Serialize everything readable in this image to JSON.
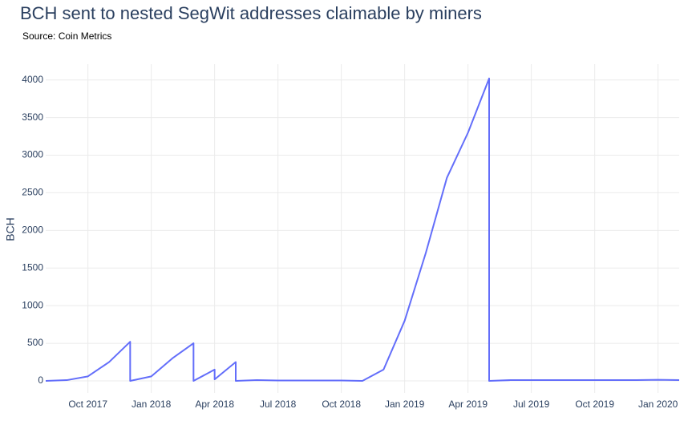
{
  "chart_data": {
    "type": "line",
    "title": "BCH sent to nested SegWit addresses claimable by miners",
    "subtitle": "Source: Coin Metrics",
    "y_label": "BCH",
    "x": [
      "2017-08",
      "2017-09",
      "2017-10",
      "2017-11",
      "2017-12",
      "2017-12",
      "2018-01",
      "2018-02",
      "2018-03",
      "2018-03",
      "2018-04",
      "2018-04",
      "2018-05",
      "2018-05",
      "2018-06",
      "2018-07",
      "2018-08",
      "2018-09",
      "2018-10",
      "2018-11",
      "2018-12",
      "2019-01",
      "2019-02",
      "2019-03",
      "2019-04",
      "2019-05",
      "2019-05",
      "2019-06",
      "2019-07",
      "2019-08",
      "2019-09",
      "2019-10",
      "2019-11",
      "2019-12",
      "2020-01",
      "2020-02"
    ],
    "series": [
      {
        "name": "BCH",
        "color": "#636efa",
        "values": [
          0,
          10,
          60,
          250,
          520,
          0,
          60,
          300,
          500,
          0,
          150,
          20,
          250,
          0,
          10,
          5,
          5,
          5,
          5,
          0,
          150,
          800,
          1700,
          2700,
          3300,
          4020,
          0,
          10,
          10,
          10,
          10,
          10,
          10,
          10,
          15,
          10
        ]
      }
    ],
    "xlim": [
      "2017-08",
      "2020-02"
    ],
    "xticks": [
      {
        "value": "2017-10",
        "label": "Oct 2017"
      },
      {
        "value": "2018-01",
        "label": "Jan 2018"
      },
      {
        "value": "2018-04",
        "label": "Apr 2018"
      },
      {
        "value": "2018-07",
        "label": "Jul 2018"
      },
      {
        "value": "2018-10",
        "label": "Oct 2018"
      },
      {
        "value": "2019-01",
        "label": "Jan 2019"
      },
      {
        "value": "2019-04",
        "label": "Apr 2019"
      },
      {
        "value": "2019-07",
        "label": "Jul 2019"
      },
      {
        "value": "2019-10",
        "label": "Oct 2019"
      },
      {
        "value": "2020-01",
        "label": "Jan 2020"
      }
    ],
    "ylim": [
      -160,
      4210
    ],
    "yticks": [
      0,
      500,
      1000,
      1500,
      2000,
      2500,
      3000,
      3500,
      4000
    ],
    "grid": true
  }
}
